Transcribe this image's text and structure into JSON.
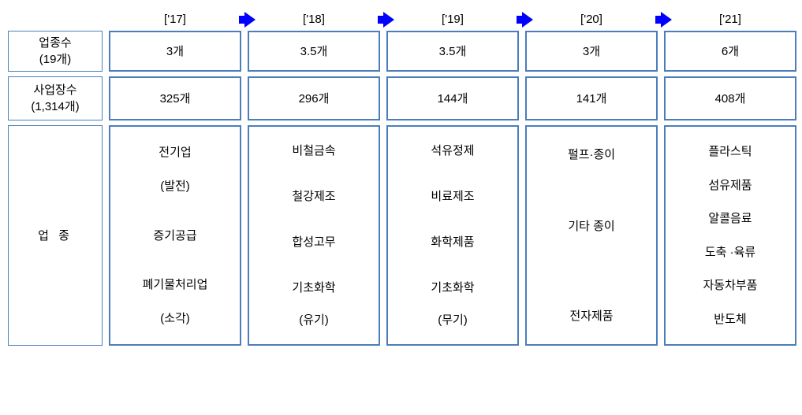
{
  "years": [
    "['17]",
    "['18]",
    "['19]",
    "['20]",
    "['21]"
  ],
  "rows": {
    "r1": {
      "label_line1": "업종수",
      "label_line2": "(19개)",
      "cells": [
        "3개",
        "3.5개",
        "3.5개",
        "3개",
        "6개"
      ]
    },
    "r2": {
      "label_line1": "사업장수",
      "label_line2": "(1,314개)",
      "cells": [
        "325개",
        "296개",
        "144개",
        "141개",
        "408개"
      ]
    },
    "r3": {
      "label": "업  종",
      "cells": [
        [
          "전기업",
          "(발전)",
          " ",
          "증기공급",
          " ",
          "폐기물처리업",
          "(소각)"
        ],
        [
          "비철금속",
          " ",
          "철강제조",
          " ",
          "합성고무",
          " ",
          "기초화학",
          "(유기)"
        ],
        [
          "석유정제",
          " ",
          "비료제조",
          " ",
          "화학제품",
          " ",
          "기초화학",
          "(무기)"
        ],
        [
          "펄프·종이",
          " ",
          " ",
          "기타 종이",
          " ",
          " ",
          " ",
          "전자제품"
        ],
        [
          "플라스틱",
          "섬유제품",
          "알콜음료",
          "도축 ·육류",
          "자동차부품",
          "반도체"
        ]
      ]
    }
  },
  "colors": {
    "border": "#4a7ebb",
    "arrow": "#0000ff",
    "text": "#000000",
    "background": "#ffffff"
  }
}
